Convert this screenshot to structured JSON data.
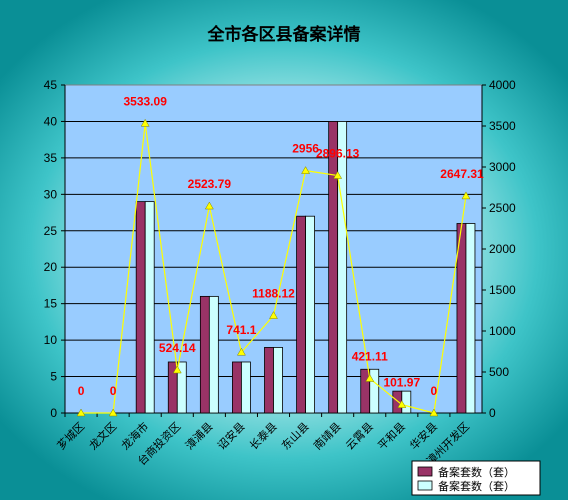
{
  "chart_data": {
    "type": "bar",
    "title": "全市各区县备案详情",
    "categories": [
      "芗城区",
      "龙文区",
      "龙海市",
      "台商投资区",
      "漳浦县",
      "诏安县",
      "长泰县",
      "东山县",
      "南靖县",
      "云霄县",
      "平和县",
      "华安县",
      "漳州开发区"
    ],
    "series": [
      {
        "name": "备案套数（套）",
        "type": "bar",
        "axis": "left",
        "color": "#993366",
        "values": [
          0,
          0,
          29,
          7,
          16,
          7,
          9,
          27,
          40,
          6,
          3,
          0,
          26
        ]
      },
      {
        "name": "备案套数（套）",
        "type": "bar",
        "axis": "left",
        "color": "#ccffff",
        "values": [
          0,
          0,
          29,
          7,
          16,
          7,
          9,
          27,
          40,
          6,
          3,
          0,
          26
        ]
      },
      {
        "type": "line",
        "axis": "right",
        "color": "#ffff00",
        "values": [
          0,
          0,
          3533.09,
          524.14,
          2523.79,
          741.1,
          1188.12,
          2956,
          2896.13,
          421.11,
          101.97,
          0,
          2647.31
        ]
      }
    ],
    "data_labels": [
      "0",
      "0",
      "3533.09",
      "524.14",
      "2523.79",
      "741.1",
      "1188.12",
      "2956",
      "2896.13",
      "421.11",
      "101.97",
      "0",
      "2647.31"
    ],
    "y_left": {
      "min": 0,
      "max": 45,
      "ticks": [
        "0",
        "5",
        "10",
        "15",
        "20",
        "25",
        "30",
        "35",
        "40",
        "45"
      ]
    },
    "y_right": {
      "min": 0,
      "max": 4000,
      "ticks": [
        "0",
        "500",
        "1000",
        "1500",
        "2000",
        "2500",
        "3000",
        "3500",
        "4000"
      ]
    },
    "legend_position": "bottom-right",
    "grid": true,
    "plot_background": "#99ccff"
  }
}
